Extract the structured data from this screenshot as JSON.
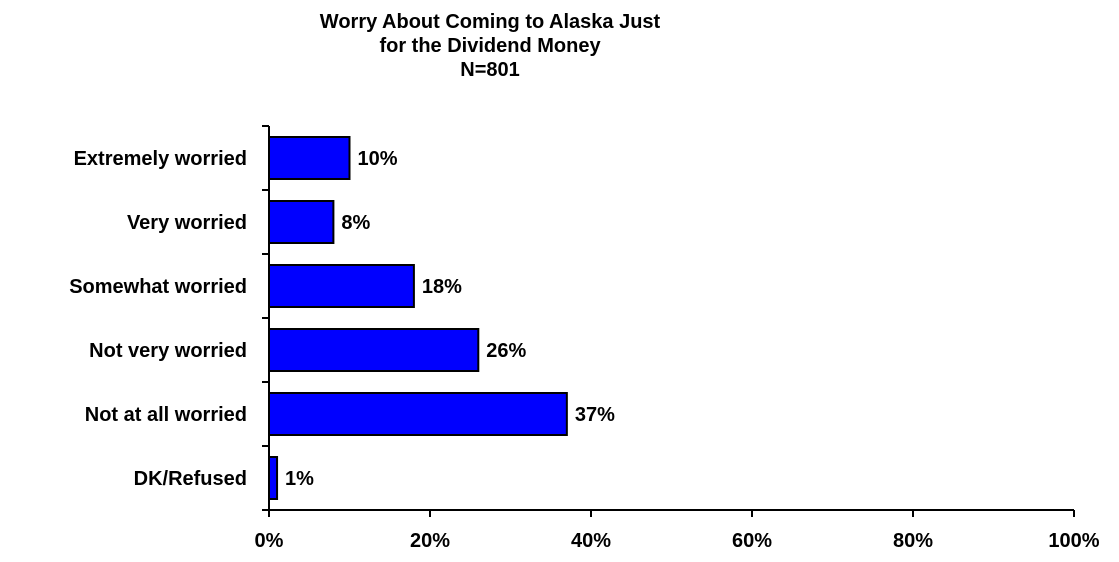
{
  "chart_data": {
    "type": "bar",
    "orientation": "horizontal",
    "title_lines": [
      "Worry About Coming to Alaska Just",
      "for the Dividend Money",
      "N=801"
    ],
    "categories": [
      "Extremely worried",
      "Very worried",
      "Somewhat worried",
      "Not very worried",
      "Not at all worried",
      "DK/Refused"
    ],
    "values": [
      10,
      8,
      18,
      26,
      37,
      1
    ],
    "value_labels": [
      "10%",
      "8%",
      "18%",
      "26%",
      "37%",
      "1%"
    ],
    "xlim": [
      0,
      100
    ],
    "xticks": [
      0,
      20,
      40,
      60,
      80,
      100
    ],
    "xtick_labels": [
      "0%",
      "20%",
      "40%",
      "60%",
      "80%",
      "100%"
    ],
    "xlabel": "",
    "ylabel": "",
    "grid": false,
    "legend": "none",
    "bar_color": "#0000FF",
    "bar_outline": "#000000"
  }
}
